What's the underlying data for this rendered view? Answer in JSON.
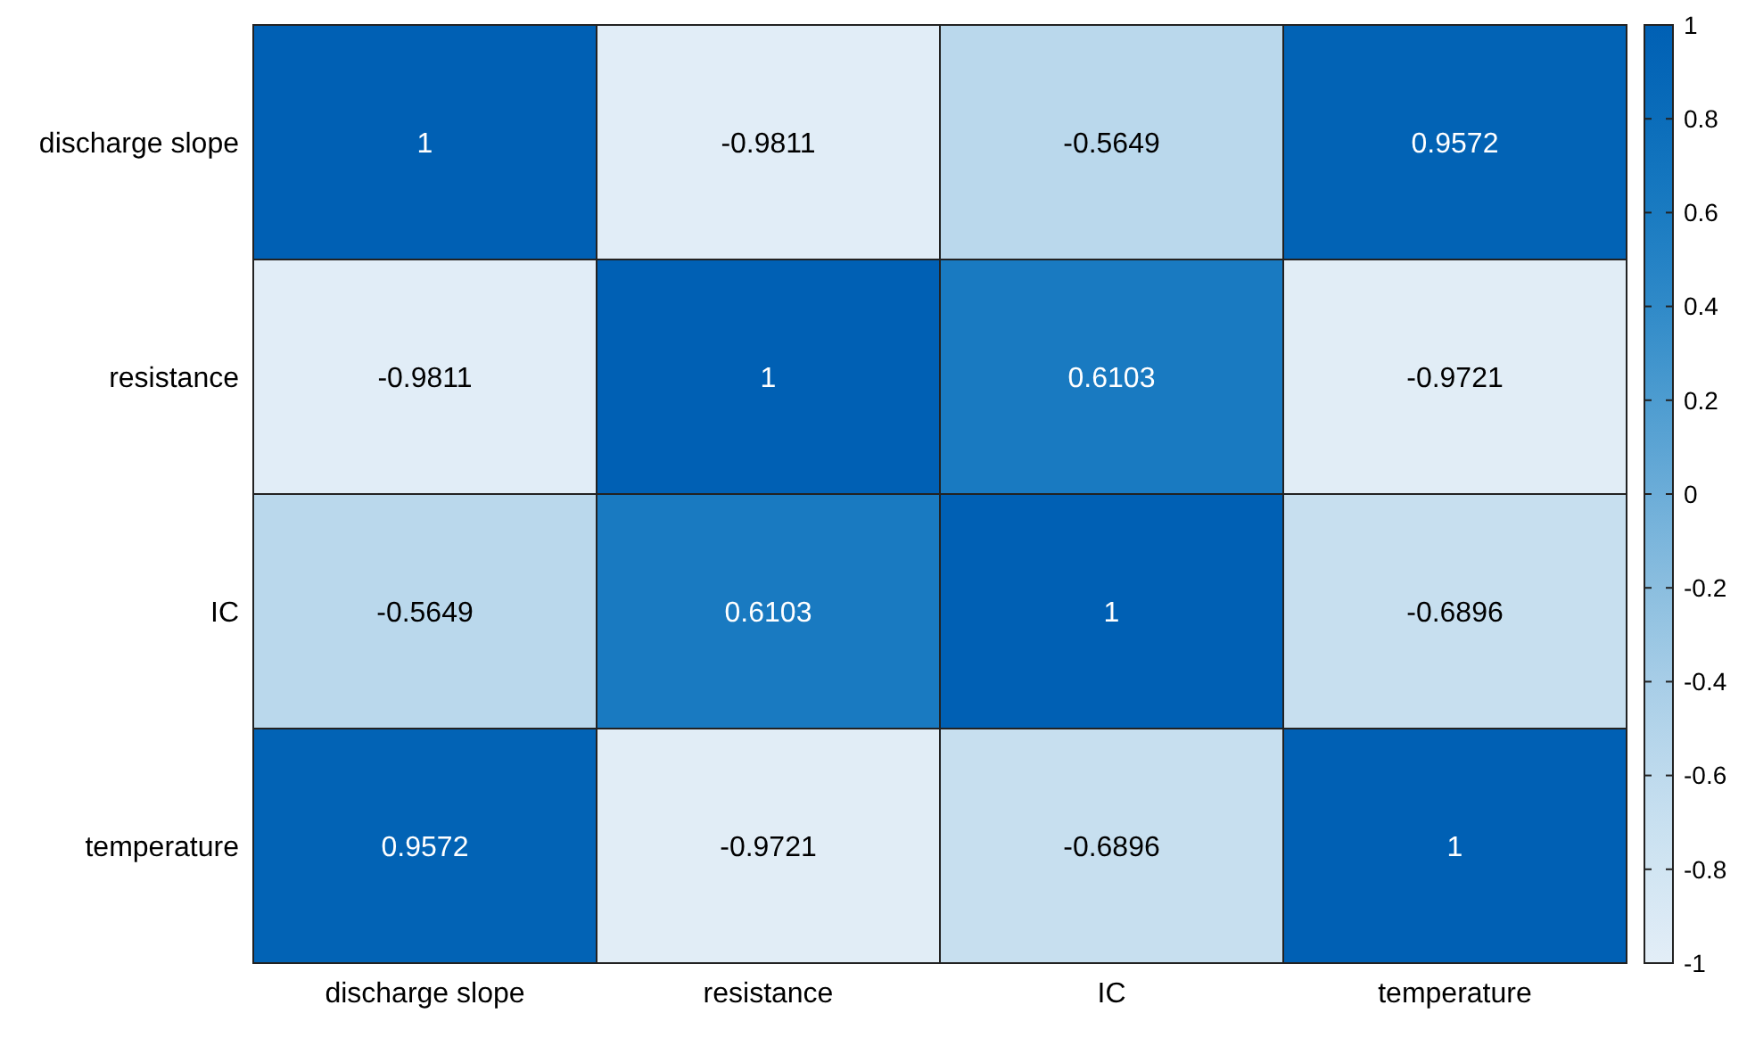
{
  "chart_data": {
    "type": "heatmap",
    "categories": [
      "discharge slope",
      "resistance",
      "IC",
      "temperature"
    ],
    "y_categories": [
      "discharge slope",
      "resistance",
      "IC",
      "temperature"
    ],
    "cells": [
      [
        1,
        -0.9811,
        -0.5649,
        0.9572
      ],
      [
        -0.9811,
        1,
        0.6103,
        -0.9721
      ],
      [
        -0.5649,
        0.6103,
        1,
        -0.6896
      ],
      [
        0.9572,
        -0.9721,
        -0.6896,
        1
      ]
    ],
    "data_labels": true,
    "clim": [
      -1,
      1
    ],
    "cticks": [
      -1,
      -0.8,
      -0.6,
      -0.4,
      -0.2,
      0,
      0.2,
      0.4,
      0.6,
      0.8,
      1
    ]
  }
}
